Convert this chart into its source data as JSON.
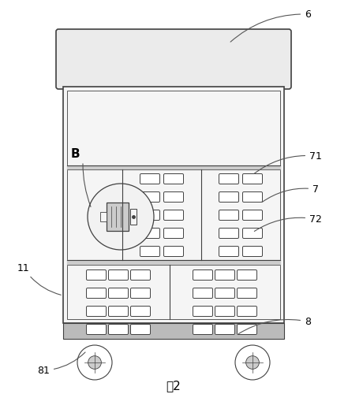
{
  "bg_color": "#ffffff",
  "line_color": "#404040",
  "fill_body": "#f5f5f5",
  "fill_lid": "#ebebeb",
  "fill_mid": "#cccccc",
  "fill_base": "#bbbbbb",
  "title": "图2",
  "dot_bg": "#e0e0e0"
}
